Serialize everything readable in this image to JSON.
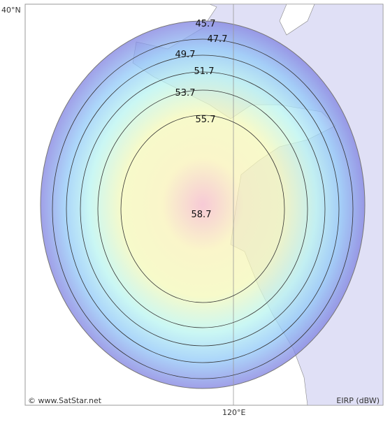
{
  "map": {
    "lat_label": "40°N",
    "lon_label": "120°E",
    "credit": "© www.SatStar.net",
    "legend_unit": "EIRP (dBW)",
    "contours": [
      45.7,
      47.7,
      49.7,
      51.7,
      53.7,
      55.7
    ],
    "peak": 58.7
  }
}
